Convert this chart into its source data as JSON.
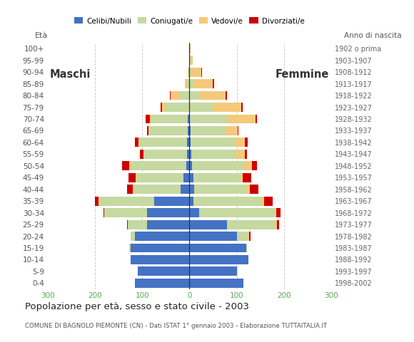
{
  "age_groups": [
    "0-4",
    "5-9",
    "10-14",
    "15-19",
    "20-24",
    "25-29",
    "30-34",
    "35-39",
    "40-44",
    "45-49",
    "50-54",
    "55-59",
    "60-64",
    "65-69",
    "70-74",
    "75-79",
    "80-84",
    "85-89",
    "90-94",
    "95-99",
    "100+"
  ],
  "birth_years": [
    "1998-2002",
    "1993-1997",
    "1988-1992",
    "1983-1987",
    "1978-1982",
    "1973-1977",
    "1968-1972",
    "1963-1967",
    "1958-1962",
    "1953-1957",
    "1948-1952",
    "1943-1947",
    "1938-1942",
    "1933-1937",
    "1928-1932",
    "1923-1927",
    "1918-1922",
    "1913-1917",
    "1908-1912",
    "1903-1907",
    "1902 o prima"
  ],
  "colors": {
    "celibi": "#4472c4",
    "coniugati": "#c5d9a0",
    "vedovi": "#f5c97a",
    "divorziati": "#cc0000"
  },
  "males": {
    "celibi": [
      115,
      110,
      125,
      125,
      115,
      90,
      90,
      75,
      18,
      12,
      7,
      5,
      5,
      3,
      4,
      0,
      0,
      0,
      0,
      0,
      0
    ],
    "coniugati": [
      0,
      0,
      0,
      2,
      10,
      40,
      90,
      115,
      100,
      100,
      115,
      90,
      100,
      80,
      75,
      50,
      20,
      5,
      2,
      0,
      0
    ],
    "vedovi": [
      0,
      0,
      0,
      0,
      0,
      0,
      0,
      2,
      2,
      2,
      5,
      2,
      3,
      4,
      5,
      8,
      20,
      5,
      2,
      0,
      0
    ],
    "divorziati": [
      0,
      0,
      0,
      0,
      0,
      2,
      2,
      8,
      12,
      15,
      15,
      8,
      8,
      2,
      8,
      3,
      2,
      0,
      0,
      0,
      0
    ]
  },
  "females": {
    "nubili": [
      115,
      100,
      125,
      120,
      100,
      80,
      20,
      8,
      10,
      8,
      5,
      4,
      3,
      2,
      0,
      0,
      0,
      0,
      0,
      0,
      0
    ],
    "coniugati": [
      0,
      0,
      0,
      2,
      22,
      100,
      160,
      145,
      110,
      100,
      110,
      95,
      95,
      75,
      80,
      50,
      22,
      10,
      5,
      2,
      0
    ],
    "vedovi": [
      0,
      0,
      0,
      0,
      5,
      5,
      3,
      5,
      8,
      5,
      18,
      18,
      20,
      25,
      60,
      60,
      55,
      40,
      20,
      5,
      2
    ],
    "divorziati": [
      0,
      0,
      0,
      0,
      2,
      5,
      10,
      18,
      18,
      18,
      10,
      5,
      5,
      2,
      3,
      2,
      3,
      2,
      2,
      0,
      0
    ]
  },
  "title": "Popolazione per età, sesso e stato civile - 2003",
  "subtitle": "COMUNE DI BAGNOLO PIEMONTE (CN) - Dati ISTAT 1° gennaio 2003 - Elaborazione TUTTAITALIA.IT",
  "legend_labels": [
    "Celibi/Nubili",
    "Coniugati/e",
    "Vedovi/e",
    "Divorziati/e"
  ],
  "label_maschi": "Maschi",
  "label_femmine": "Femmine",
  "label_eta": "Età",
  "label_anno": "Anno di nascita",
  "xlim": 300,
  "background_color": "#ffffff",
  "grid_color": "#cccccc",
  "axis_tick_color": "#55aa55"
}
